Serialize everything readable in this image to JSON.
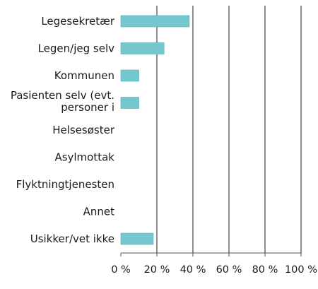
{
  "chart_data": {
    "type": "bar",
    "orientation": "horizontal",
    "categories": [
      [
        "Legesekretær"
      ],
      [
        "Legen/jeg selv"
      ],
      [
        "Kommunen"
      ],
      [
        "Pasienten selv (evt.",
        "personer i"
      ],
      [
        "Helsesøster"
      ],
      [
        "Asylmottak"
      ],
      [
        "Flyktningtjenesten"
      ],
      [
        "Annet"
      ],
      [
        "Usikker/vet ikke"
      ]
    ],
    "values": [
      38,
      24,
      10,
      10,
      0,
      0,
      0,
      0,
      18
    ],
    "xlim": [
      0,
      100
    ],
    "xticks": [
      0,
      20,
      40,
      60,
      80,
      100
    ],
    "xtick_labels": [
      "0 %",
      "20 %",
      "40 %",
      "60 %",
      "80 %",
      "100 %"
    ],
    "grid": "vertical",
    "colors": {
      "bar": "#74c7cd",
      "bar_edge": "#4fb0b7",
      "grid": "#333333",
      "axis": "#555555"
    }
  }
}
